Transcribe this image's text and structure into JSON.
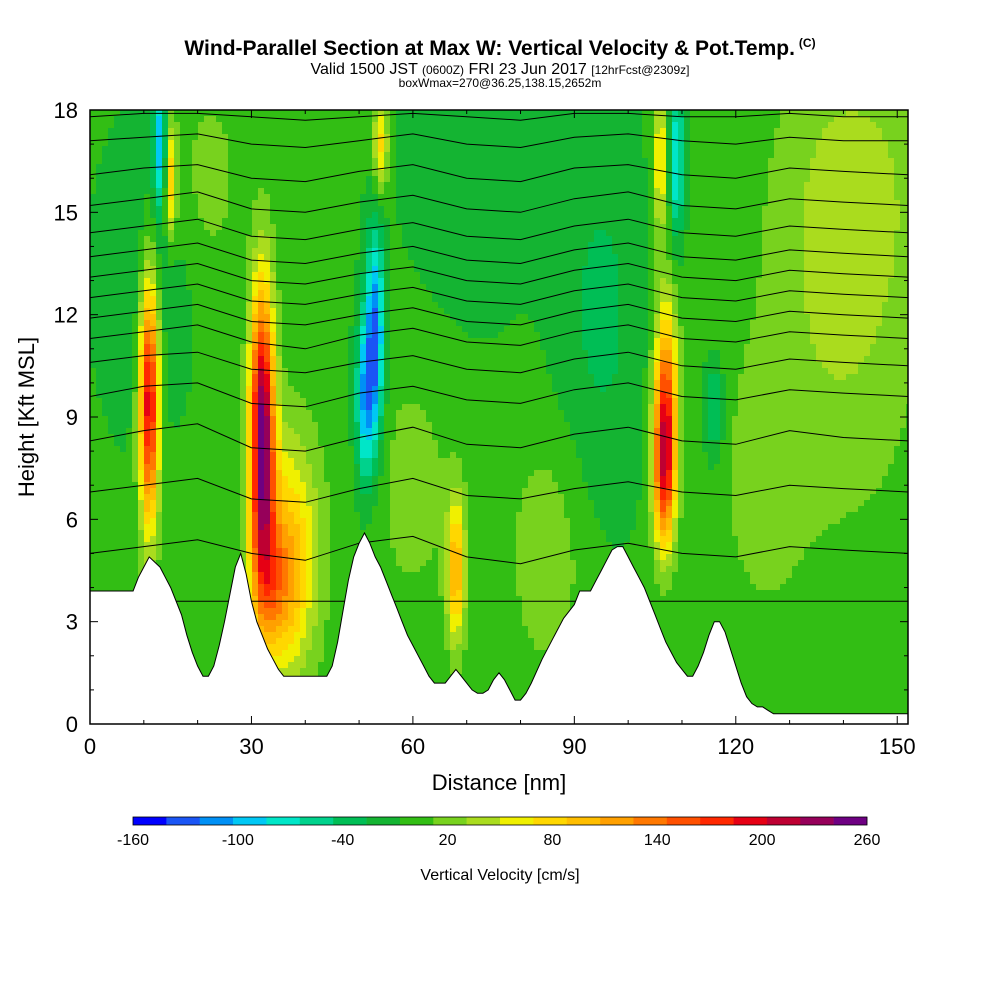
{
  "header": {
    "title": "Wind-Parallel Section at Max W: Vertical Velocity & Pot.Temp.",
    "copyright": "(C)",
    "subtitle_a": "Valid 1500 JST",
    "subtitle_b": "(0600Z)",
    "subtitle_c": "FRI 23 Jun 2017",
    "subtitle_d": "[12hrFcst@2309z]",
    "subtitle2": "boxWmax=270@36.25,138.15,2652m"
  },
  "chart_data": {
    "type": "heatmap",
    "title": "Wind-Parallel Section at Max W: Vertical Velocity & Pot.Temp.",
    "xlabel": "Distance [nm]",
    "ylabel": "Height [Kft MSL]",
    "xlim": [
      0,
      152
    ],
    "ylim": [
      0,
      18
    ],
    "xticks": [
      0,
      30,
      60,
      90,
      120,
      150
    ],
    "yticks": [
      0,
      3,
      6,
      9,
      12,
      15,
      18
    ],
    "grid": false,
    "colorbar": {
      "label": "Vertical Velocity [cm/s]",
      "ticks": [
        -160,
        -100,
        -40,
        20,
        80,
        140,
        200,
        260
      ],
      "bins": [
        -160,
        -140,
        -120,
        -100,
        -80,
        -60,
        -40,
        -20,
        0,
        20,
        40,
        60,
        80,
        100,
        120,
        140,
        160,
        180,
        200,
        220,
        240,
        260
      ],
      "colors": [
        "#0000ff",
        "#1a55f5",
        "#0090f5",
        "#00c8f5",
        "#00e6c8",
        "#00d28c",
        "#00be55",
        "#14b432",
        "#32be14",
        "#78d21e",
        "#aadc1e",
        "#f0f000",
        "#ffd700",
        "#ffbe00",
        "#ffa000",
        "#ff7800",
        "#ff5000",
        "#ff2800",
        "#e60014",
        "#be0032",
        "#96005a",
        "#6e0082"
      ]
    },
    "terrain_profile": {
      "x": [
        0,
        8,
        9,
        10,
        11,
        13,
        14,
        15,
        17,
        18,
        19,
        20,
        21,
        22,
        23,
        24,
        25,
        26,
        27,
        28,
        29,
        30,
        31,
        32,
        33,
        34,
        35,
        36,
        37,
        38,
        39,
        40,
        44,
        45,
        46,
        47,
        48,
        49,
        50,
        51,
        52,
        53,
        54,
        55,
        56,
        57,
        58,
        59,
        60,
        61,
        62,
        63,
        64,
        65,
        66,
        67,
        68,
        69,
        70,
        71,
        72,
        73,
        74,
        75,
        76,
        77,
        78,
        79,
        80,
        81,
        82,
        84,
        86,
        88,
        90,
        91,
        92,
        93,
        94,
        95,
        96,
        97,
        98,
        99,
        100,
        101,
        102,
        103,
        104,
        105,
        106,
        107,
        108,
        109,
        110,
        111,
        112,
        113,
        114,
        115,
        116,
        117,
        118,
        119,
        120,
        121,
        122,
        123,
        124,
        125,
        126,
        127,
        140,
        152
      ],
      "height_kft": [
        3.9,
        3.9,
        4.3,
        4.6,
        4.9,
        4.6,
        4.3,
        4.0,
        3.2,
        2.6,
        2.1,
        1.7,
        1.4,
        1.4,
        1.7,
        2.3,
        3.0,
        3.8,
        4.6,
        5.0,
        4.4,
        3.6,
        3.0,
        2.6,
        2.2,
        1.9,
        1.6,
        1.4,
        1.4,
        1.4,
        1.4,
        1.4,
        1.4,
        1.7,
        2.4,
        3.3,
        4.2,
        4.9,
        5.3,
        5.6,
        5.3,
        4.9,
        4.6,
        4.2,
        3.8,
        3.4,
        3.0,
        2.6,
        2.3,
        2.0,
        1.7,
        1.4,
        1.2,
        1.2,
        1.2,
        1.4,
        1.6,
        1.4,
        1.2,
        1.0,
        0.9,
        0.9,
        1.0,
        1.3,
        1.5,
        1.3,
        1.0,
        0.7,
        0.7,
        0.9,
        1.2,
        1.9,
        2.5,
        3.1,
        3.5,
        3.9,
        3.9,
        3.9,
        4.2,
        4.5,
        4.8,
        5.1,
        5.2,
        5.2,
        4.9,
        4.6,
        4.3,
        4.0,
        3.6,
        3.2,
        2.8,
        2.4,
        2.1,
        1.8,
        1.6,
        1.4,
        1.4,
        1.7,
        2.1,
        2.6,
        3.0,
        3.0,
        2.7,
        2.2,
        1.7,
        1.2,
        0.8,
        0.6,
        0.5,
        0.5,
        0.4,
        0.3,
        0.3,
        0.3
      ],
      "terrain_color": "#ffffff"
    },
    "background_w_cm_s": 5,
    "w_features": [
      {
        "x": 11,
        "z": 9.5,
        "sx": 1.3,
        "sz": 2.6,
        "w": 220
      },
      {
        "x": 32,
        "z": 8.5,
        "sx": 1.6,
        "sz": 3.0,
        "w": 260
      },
      {
        "x": 37,
        "z": 5.0,
        "sx": 4.0,
        "sz": 2.5,
        "w": 95
      },
      {
        "x": 34,
        "z": 4.0,
        "sx": 3.0,
        "sz": 1.5,
        "w": 70
      },
      {
        "x": 107,
        "z": 9.2,
        "sx": 1.5,
        "sz": 2.2,
        "w": 170
      },
      {
        "x": 106.5,
        "z": 7.2,
        "sx": 1.4,
        "sz": 1.5,
        "w": 110
      },
      {
        "x": 68,
        "z": 4.5,
        "sx": 1.2,
        "sz": 1.5,
        "w": 110
      },
      {
        "x": 53,
        "z": 11.3,
        "sx": 1.2,
        "sz": 2.2,
        "w": -130
      },
      {
        "x": 51,
        "z": 9.5,
        "sx": 1.2,
        "sz": 1.8,
        "w": -100
      },
      {
        "x": 13,
        "z": 17.0,
        "sx": 0.9,
        "sz": 1.3,
        "w": -100
      },
      {
        "x": 15,
        "z": 16.0,
        "sx": 0.8,
        "sz": 1.2,
        "w": 100
      },
      {
        "x": 109,
        "z": 16.5,
        "sx": 1.0,
        "sz": 1.5,
        "w": -90
      },
      {
        "x": 106,
        "z": 16.5,
        "sx": 1.0,
        "sz": 1.5,
        "w": 80
      },
      {
        "x": 54,
        "z": 17.0,
        "sx": 1.0,
        "sz": 1.0,
        "w": 85
      },
      {
        "x": 116,
        "z": 9.2,
        "sx": 1.3,
        "sz": 1.0,
        "w": -55
      },
      {
        "x": 140,
        "z": 11.0,
        "sx": 10.0,
        "sz": 4.0,
        "w": 30
      },
      {
        "x": 142,
        "z": 16.0,
        "sx": 10.0,
        "sz": 3.0,
        "w": 35
      },
      {
        "x": 70,
        "z": 16.0,
        "sx": 8.0,
        "sz": 3.0,
        "w": -22
      },
      {
        "x": 95,
        "z": 12.0,
        "sx": 6.0,
        "sz": 4.0,
        "w": -30
      },
      {
        "x": 60,
        "z": 7.0,
        "sx": 6.0,
        "sz": 3.0,
        "w": 22
      },
      {
        "x": 10,
        "z": 13.0,
        "sx": 6.0,
        "sz": 3.0,
        "w": -25
      },
      {
        "x": 125,
        "z": 7.0,
        "sx": 6.0,
        "sz": 3.0,
        "w": 22
      },
      {
        "x": 85,
        "z": 5.0,
        "sx": 5.0,
        "sz": 2.5,
        "w": 30
      },
      {
        "x": 22,
        "z": 16.0,
        "sx": 4.0,
        "sz": 2.0,
        "w": 25
      }
    ],
    "theta_contours_height_kft": [
      [
        3.6,
        3.6,
        3.6,
        3.6,
        3.6,
        3.6,
        3.6,
        3.6,
        3.6,
        3.6,
        3.6,
        3.6,
        3.6,
        3.6,
        3.6,
        3.6
      ],
      [
        5.0,
        5.2,
        5.4,
        5.0,
        4.8,
        5.3,
        5.5,
        4.9,
        4.7,
        5.1,
        5.3,
        5.0,
        4.9,
        5.2,
        5.1,
        5.0
      ],
      [
        6.8,
        7.0,
        7.2,
        6.6,
        6.5,
        6.9,
        7.2,
        6.7,
        6.6,
        6.9,
        7.1,
        6.8,
        6.7,
        7.0,
        6.9,
        6.8
      ],
      [
        8.3,
        8.6,
        8.8,
        8.1,
        8.0,
        8.4,
        8.7,
        8.2,
        8.1,
        8.5,
        8.7,
        8.3,
        8.2,
        8.6,
        8.4,
        8.3
      ],
      [
        9.6,
        9.9,
        10.0,
        9.4,
        9.3,
        9.7,
        9.9,
        9.5,
        9.4,
        9.8,
        10.0,
        9.6,
        9.5,
        9.8,
        9.7,
        9.6
      ],
      [
        10.6,
        10.8,
        10.9,
        10.4,
        10.3,
        10.6,
        10.8,
        10.4,
        10.3,
        10.7,
        10.9,
        10.5,
        10.4,
        10.7,
        10.6,
        10.5
      ],
      [
        11.3,
        11.5,
        11.7,
        11.2,
        11.0,
        11.4,
        11.6,
        11.2,
        11.1,
        11.5,
        11.7,
        11.3,
        11.2,
        11.5,
        11.4,
        11.3
      ],
      [
        11.9,
        12.1,
        12.3,
        11.8,
        11.7,
        12.0,
        12.2,
        11.8,
        11.7,
        12.1,
        12.3,
        11.9,
        11.8,
        12.1,
        12.0,
        11.9
      ],
      [
        12.5,
        12.7,
        12.9,
        12.4,
        12.3,
        12.6,
        12.8,
        12.4,
        12.3,
        12.7,
        12.9,
        12.5,
        12.4,
        12.7,
        12.6,
        12.5
      ],
      [
        13.1,
        13.3,
        13.5,
        13.0,
        12.9,
        13.2,
        13.4,
        13.0,
        12.9,
        13.3,
        13.5,
        13.1,
        13.0,
        13.3,
        13.2,
        13.1
      ],
      [
        13.7,
        13.9,
        14.1,
        13.6,
        13.5,
        13.8,
        14.0,
        13.6,
        13.5,
        13.9,
        14.1,
        13.7,
        13.6,
        13.9,
        13.8,
        13.7
      ],
      [
        14.4,
        14.6,
        14.8,
        14.3,
        14.2,
        14.5,
        14.7,
        14.3,
        14.2,
        14.6,
        14.8,
        14.4,
        14.3,
        14.6,
        14.5,
        14.4
      ],
      [
        15.2,
        15.4,
        15.6,
        15.1,
        15.0,
        15.3,
        15.5,
        15.1,
        15.0,
        15.4,
        15.6,
        15.2,
        15.1,
        15.4,
        15.3,
        15.2
      ],
      [
        16.1,
        16.3,
        16.4,
        16.0,
        15.9,
        16.2,
        16.4,
        16.0,
        15.9,
        16.3,
        16.4,
        16.1,
        16.0,
        16.3,
        16.2,
        16.1
      ],
      [
        17.1,
        17.2,
        17.3,
        17.0,
        16.9,
        17.1,
        17.3,
        17.0,
        16.9,
        17.2,
        17.3,
        17.1,
        17.0,
        17.2,
        17.1,
        17.1
      ],
      [
        17.8,
        17.9,
        17.9,
        17.8,
        17.7,
        17.8,
        17.9,
        17.8,
        17.7,
        17.9,
        17.9,
        17.8,
        17.8,
        17.9,
        17.8,
        17.8
      ]
    ],
    "theta_contour_x": [
      0,
      10,
      20,
      30,
      40,
      50,
      60,
      70,
      80,
      90,
      100,
      110,
      120,
      130,
      140,
      152
    ]
  }
}
